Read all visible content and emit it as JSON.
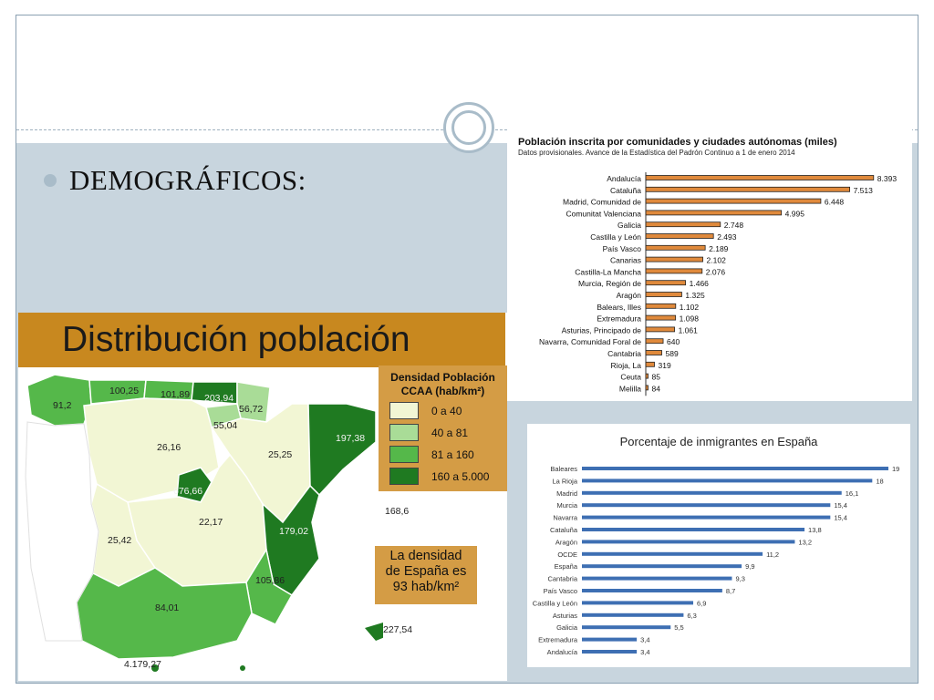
{
  "slide": {
    "bullet": "DEMOGRÁFICOS:"
  },
  "map": {
    "title": "Distribución población",
    "legend": {
      "title_line1": "Densidad Población",
      "title_line2": "CCAA (hab/km²)",
      "items": [
        {
          "label": "0 a 40",
          "color": "#f2f6d4"
        },
        {
          "label": "40 a 81",
          "color": "#a9dc97"
        },
        {
          "label": "81 a 160",
          "color": "#55b84a"
        },
        {
          "label": "160 a 5.000",
          "color": "#1f7a21"
        }
      ]
    },
    "density_note": {
      "line1": "La densidad",
      "line2": "de España es",
      "line3": "93 hab/km²"
    },
    "region_values": [
      "91,2",
      "100,25",
      "101,89",
      "203,94",
      "56,72",
      "55,04",
      "26,16",
      "25,25",
      "197,38",
      "676,66",
      "22,17",
      "25,42",
      "179,02",
      "168,6",
      "105,86",
      "84,01",
      "227,54",
      "4.179,27"
    ]
  },
  "chart_data": [
    {
      "type": "bar",
      "orientation": "horizontal",
      "title": "Población inscrita por comunidades y ciudades autónomas (miles)",
      "subtitle": "Datos provisionales. Avance de la Estadística del Padrón Continuo a 1 de enero 2014",
      "color": "#e08a3c",
      "categories": [
        "Andalucía",
        "Cataluña",
        "Madrid, Comunidad de",
        "Comunitat Valenciana",
        "Galicia",
        "Castilla y León",
        "País Vasco",
        "Canarias",
        "Castilla-La Mancha",
        "Murcia, Región de",
        "Aragón",
        "Balears, Illes",
        "Extremadura",
        "Asturias, Principado de",
        "Navarra, Comunidad Foral de",
        "Cantabria",
        "Rioja, La",
        "Ceuta",
        "Melilla"
      ],
      "values": [
        8393,
        7513,
        6448,
        4995,
        2748,
        2493,
        2189,
        2102,
        2076,
        1466,
        1325,
        1102,
        1098,
        1061,
        640,
        589,
        319,
        85,
        84
      ],
      "value_labels": [
        "8.393",
        "7.513",
        "6.448",
        "4.995",
        "2.748",
        "2.493",
        "2.189",
        "2.102",
        "2.076",
        "1.466",
        "1.325",
        "1.102",
        "1.098",
        "1.061",
        "640",
        "589",
        "319",
        "85",
        "84"
      ],
      "xlim": [
        0,
        8400
      ]
    },
    {
      "type": "bar",
      "orientation": "horizontal",
      "title": "Porcentaje de inmigrantes en España",
      "color": "#3e6fb3",
      "categories": [
        "Baleares",
        "La Rioja",
        "Madrid",
        "Murcia",
        "Navarra",
        "Cataluña",
        "Aragón",
        "OCDE",
        "España",
        "Cantabria",
        "País Vasco",
        "Castilla y León",
        "Asturias",
        "Galicia",
        "Extremadura",
        "Andalucía"
      ],
      "values": [
        19,
        18,
        16.1,
        15.4,
        15.4,
        13.8,
        13.2,
        11.2,
        9.9,
        9.3,
        8.7,
        6.9,
        6.3,
        5.5,
        3.4,
        3.4
      ],
      "value_labels": [
        "19",
        "18",
        "16,1",
        "15,4",
        "15,4",
        "13,8",
        "13,2",
        "11,2",
        "9,9",
        "9,3",
        "8,7",
        "6,9",
        "6,3",
        "5,5",
        "3,4",
        "3,4"
      ],
      "xlim": [
        0,
        19
      ]
    }
  ]
}
